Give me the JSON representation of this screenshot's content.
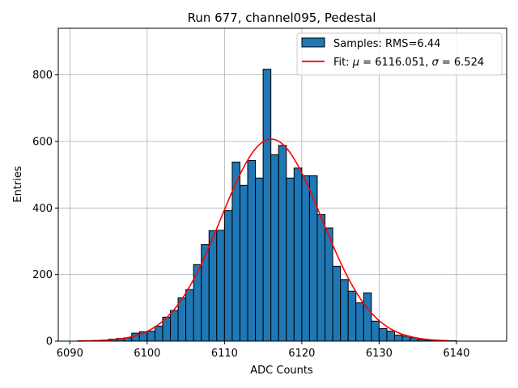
{
  "chart_data": {
    "type": "bar",
    "title": "Run 677, channel095, Pedestal",
    "xlabel": "ADC Counts",
    "ylabel": "Entries",
    "xlim": [
      6088.5,
      6146.5
    ],
    "ylim": [
      0,
      940
    ],
    "xticks": [
      6090,
      6100,
      6110,
      6120,
      6130,
      6140
    ],
    "yticks": [
      0,
      200,
      400,
      600,
      800
    ],
    "grid": true,
    "legend_position": "top-right",
    "histogram": {
      "name": "Samples: RMS=6.44",
      "color": "#1f77b4",
      "edgecolor": "#000000",
      "bin_width": 1,
      "bin_starts": [
        6091,
        6092,
        6093,
        6094,
        6095,
        6096,
        6097,
        6098,
        6099,
        6100,
        6101,
        6102,
        6103,
        6104,
        6105,
        6106,
        6107,
        6108,
        6109,
        6110,
        6111,
        6112,
        6113,
        6114,
        6115,
        6116,
        6117,
        6118,
        6119,
        6120,
        6121,
        6122,
        6123,
        6124,
        6125,
        6126,
        6127,
        6128,
        6129,
        6130,
        6131,
        6132,
        6133,
        6134,
        6135,
        6136,
        6137,
        6138,
        6139
      ],
      "counts": [
        1,
        1,
        2,
        3,
        6,
        8,
        10,
        24,
        28,
        30,
        45,
        72,
        92,
        130,
        155,
        230,
        290,
        332,
        333,
        392,
        538,
        468,
        543,
        490,
        817,
        560,
        588,
        490,
        520,
        497,
        497,
        380,
        340,
        225,
        185,
        150,
        115,
        145,
        60,
        38,
        30,
        18,
        15,
        10,
        5,
        3,
        2,
        1,
        1
      ]
    },
    "fit": {
      "name": "Fit: μ = 6116.051, σ = 6.524",
      "name_prefix": "Fit: ",
      "mu_label": "μ",
      "mu_text": " = 6116.051, ",
      "sigma_label": "σ",
      "sigma_text": " = 6.524",
      "color": "#ff0000",
      "mu": 6116.051,
      "sigma": 6.524,
      "amplitude": 607,
      "x_range": [
        6091,
        6139
      ]
    }
  }
}
